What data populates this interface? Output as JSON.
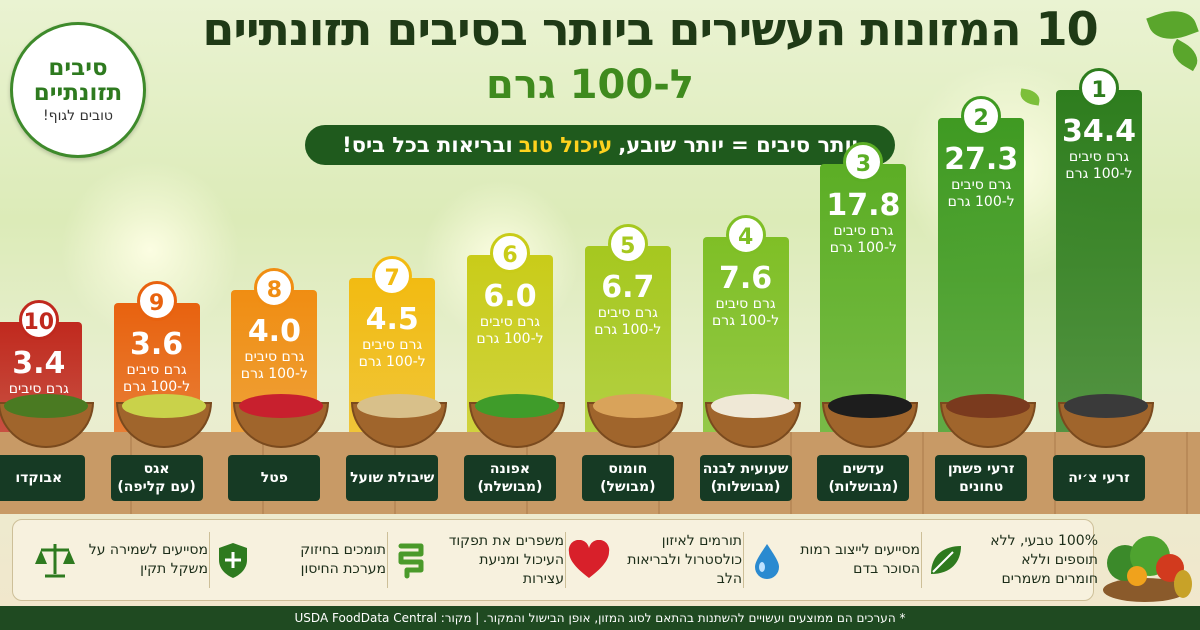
{
  "title_line1": "10 המזונות העשירים ביותר בסיבים תזונתיים",
  "title_line2": "ל-100 גרם",
  "tagline": {
    "part1": "יותר סיבים = יותר שובע,",
    "highlight": "עיכול טוב",
    "part2": "ובריאות בכל ביס!"
  },
  "badge": {
    "line1": "סיבים",
    "line2": "תזונתיים",
    "line3": "טובים לגוף!"
  },
  "colors": {
    "dark_green": "#1f5a1d",
    "accent_yellow": "#ffd21e",
    "red": "#c0291e"
  },
  "unit_line1": "גרם סיבים",
  "unit_line2": "ל-100 גרם",
  "chart_data": {
    "type": "bar",
    "title": "10 המזונות העשירים ביותר בסיבים תזונתיים ל-100 גרם",
    "unit": "גרם סיבים ל-100 גרם",
    "items": [
      {
        "rank": "1",
        "value": "34.4",
        "name": "זרעי צ׳יה",
        "sub": "",
        "color": "#2e7d1e",
        "food": "#3a3a3a",
        "icon": "chia-seeds-bowl-icon"
      },
      {
        "rank": "2",
        "value": "27.3",
        "name": "זרעי פשתן",
        "sub": "טחונים",
        "color": "#3f9a22",
        "food": "#7a3a1e",
        "icon": "flax-seeds-bowl-icon"
      },
      {
        "rank": "3",
        "value": "17.8",
        "name": "עדשים",
        "sub": "(מבושלות)",
        "color": "#5cae25",
        "food": "#1d1d1d",
        "icon": "lentils-bowl-icon"
      },
      {
        "rank": "4",
        "value": "7.6",
        "name": "שעועית לבנה",
        "sub": "(מבושלות)",
        "color": "#7fbf26",
        "food": "#efe8d6",
        "icon": "white-beans-bowl-icon"
      },
      {
        "rank": "5",
        "value": "6.7",
        "name": "חומוס",
        "sub": "(מבושל)",
        "color": "#a6c81f",
        "food": "#d9a35a",
        "icon": "chickpeas-bowl-icon"
      },
      {
        "rank": "6",
        "value": "6.0",
        "name": "אפונה",
        "sub": "(מבושלת)",
        "color": "#c9cc19",
        "food": "#3f9c2a",
        "icon": "peas-bowl-icon"
      },
      {
        "rank": "7",
        "value": "4.5",
        "name": "שיבולת שועל",
        "sub": "",
        "color": "#f2bb12",
        "food": "#d8c08a",
        "icon": "oats-bowl-icon"
      },
      {
        "rank": "8",
        "value": "4.0",
        "name": "פטל",
        "sub": "",
        "color": "#f08d12",
        "food": "#c8202e",
        "icon": "raspberries-bowl-icon"
      },
      {
        "rank": "9",
        "value": "3.6",
        "name": "אגס",
        "sub": "(עם קליפה)",
        "color": "#e8620f",
        "food": "#c9d24a",
        "icon": "pear-icon"
      },
      {
        "rank": "10",
        "value": "3.4",
        "name": "אבוקדו",
        "sub": "",
        "color": "#c0291e",
        "food": "#4a7a22",
        "icon": "avocado-icon"
      }
    ]
  },
  "benefits": [
    {
      "text": "100% טבעי, ללא תוספים וללא חומרים משמרים",
      "icon": "leaf-icon"
    },
    {
      "text": "מסייעים לייצוב רמות הסוכר בדם",
      "icon": "water-drop-icon"
    },
    {
      "text": "תורמים לאיזון כולסטרול ולבריאות הלב",
      "icon": "heart-icon"
    },
    {
      "text": "משפרים את תפקוד העיכול ומניעת עצירות",
      "icon": "intestine-icon"
    },
    {
      "text": "תומכים בחיזוק מערכת החיסון",
      "icon": "shield-icon"
    },
    {
      "text": "מסייעים לשמירה על משקל תקין",
      "icon": "scale-icon"
    }
  ],
  "footer": "* הערכים הם ממוצעים ועשויים להשתנות בהתאם לסוג המזון, אופן הבישול והמקור. | מקור: USDA FoodData Central"
}
